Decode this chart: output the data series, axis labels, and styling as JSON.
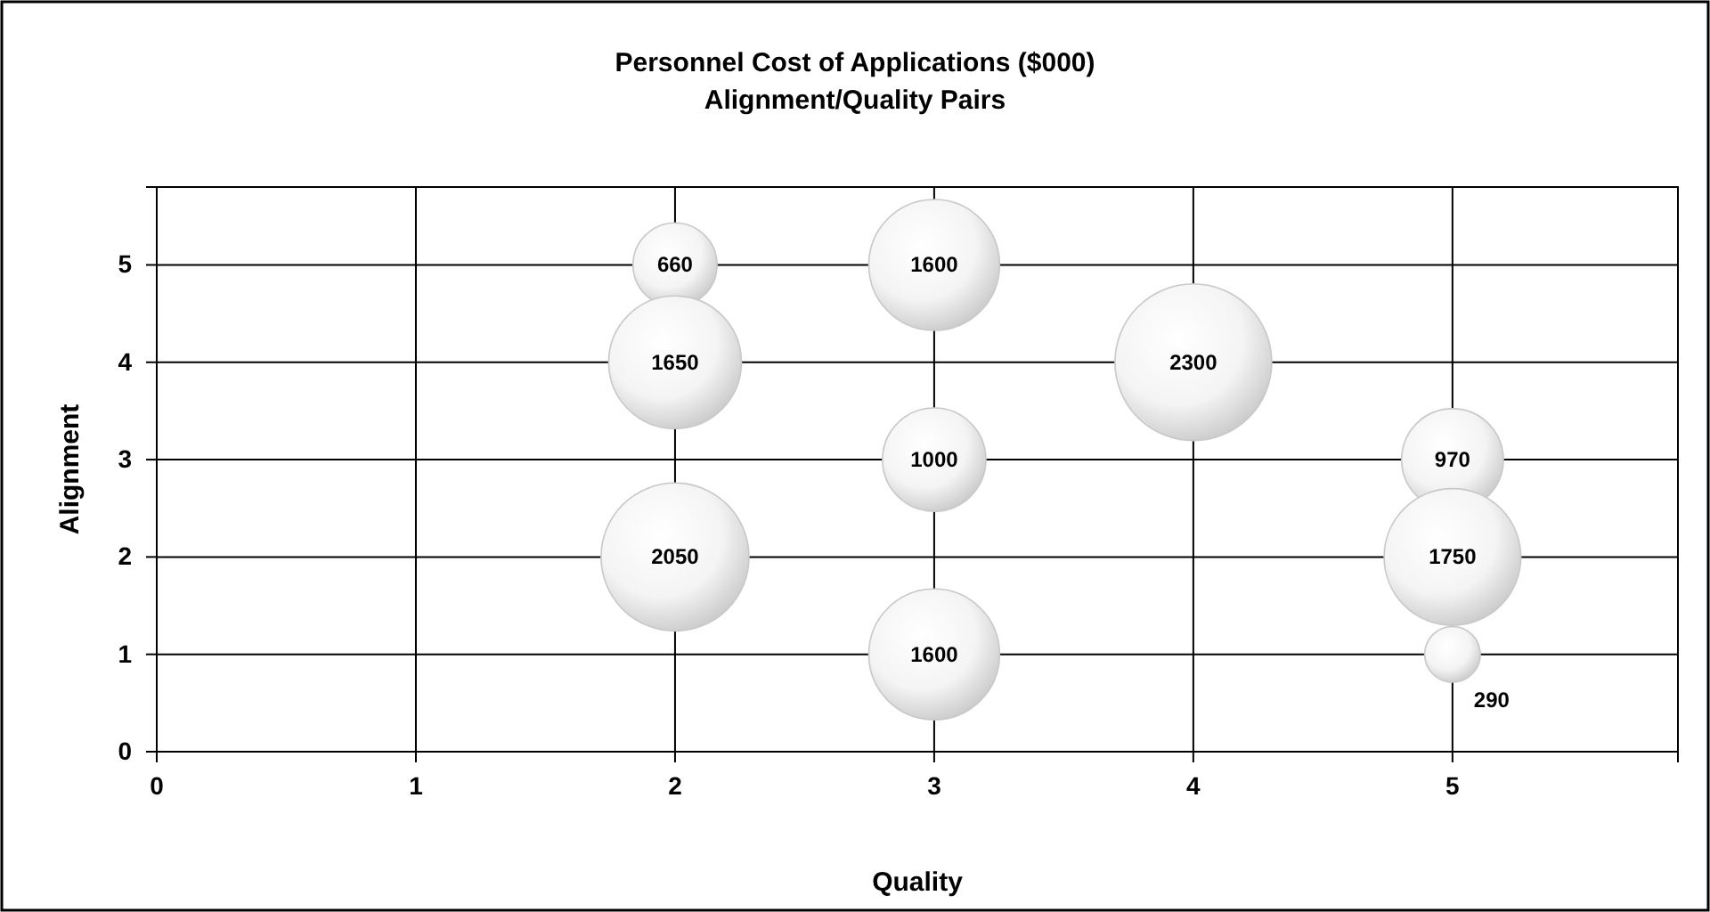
{
  "chart_data": {
    "type": "bubble",
    "title": "Personnel Cost of Applications ($000)",
    "subtitle": "Alignment/Quality Pairs",
    "xlabel": "Quality",
    "ylabel": "Alignment",
    "x": [
      2,
      2,
      2,
      3,
      3,
      3,
      4,
      5,
      5,
      5
    ],
    "values": [
      5,
      4,
      2,
      5,
      3,
      1,
      4,
      3,
      2,
      1
    ],
    "sizes": [
      0.287,
      0.717,
      0.891,
      0.696,
      0.435,
      0.696,
      1,
      0.422,
      0.761,
      0.126
    ],
    "annotations": [
      {
        "text": "660",
        "x": 2,
        "y": 5
      },
      {
        "text": "1650",
        "x": 2,
        "y": 4
      },
      {
        "text": "2050",
        "x": 2,
        "y": 2
      },
      {
        "text": "1600",
        "x": 3,
        "y": 5
      },
      {
        "text": "1000",
        "x": 3,
        "y": 3
      },
      {
        "text": "1600",
        "x": 3,
        "y": 1
      },
      {
        "text": "2300",
        "x": 4,
        "y": 4
      },
      {
        "text": "970",
        "x": 5,
        "y": 3
      },
      {
        "text": "1750",
        "x": 5,
        "y": 2
      },
      {
        "text": "290",
        "x": 5,
        "y": 1
      }
    ],
    "color": "#c8c8c8",
    "xlim": [
      0,
      5.87
    ],
    "xticks": [
      0,
      1,
      2,
      3,
      4,
      5
    ],
    "ylim": [
      0,
      5.8
    ],
    "yticks": [
      0,
      1,
      2,
      3,
      4,
      5
    ],
    "grid": true
  }
}
